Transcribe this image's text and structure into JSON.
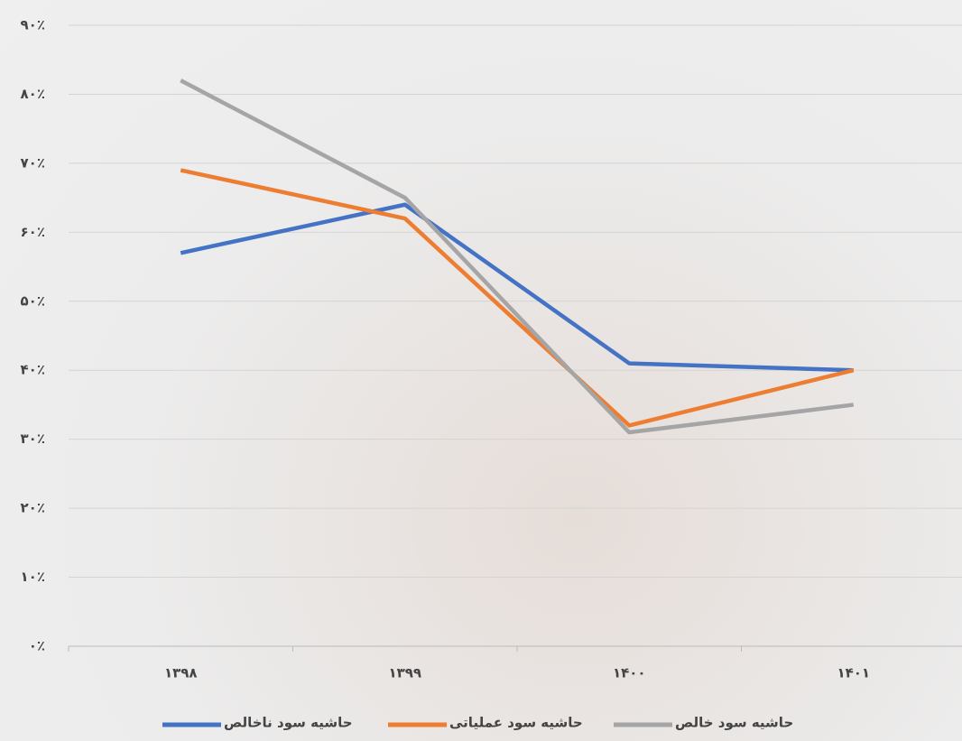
{
  "chart_data": {
    "type": "line",
    "categories": [
      "۱۳۹۸",
      "۱۳۹۹",
      "۱۴۰۰",
      "۱۴۰۱"
    ],
    "series": [
      {
        "name": "حاشیه سود ناخالص",
        "color": "#4472c4",
        "values": [
          57,
          64,
          41,
          40
        ]
      },
      {
        "name": "حاشیه سود عملیاتی",
        "color": "#ed7d31",
        "values": [
          69,
          62,
          32,
          40
        ]
      },
      {
        "name": "حاشیه سود خالص",
        "color": "#a5a5a5",
        "values": [
          82,
          65,
          31,
          35
        ]
      }
    ],
    "ylim": [
      0,
      90
    ],
    "yticks": [
      {
        "value": 0,
        "label": "۰٪"
      },
      {
        "value": 10,
        "label": "۱۰٪"
      },
      {
        "value": 20,
        "label": "۲۰٪"
      },
      {
        "value": 30,
        "label": "۳۰٪"
      },
      {
        "value": 40,
        "label": "۴۰٪"
      },
      {
        "value": 50,
        "label": "۵۰٪"
      },
      {
        "value": 60,
        "label": "۶۰٪"
      },
      {
        "value": 70,
        "label": "۷۰٪"
      },
      {
        "value": 80,
        "label": "۸۰٪"
      },
      {
        "value": 90,
        "label": "۹۰٪"
      }
    ],
    "grid": true,
    "legend": "bottom"
  }
}
